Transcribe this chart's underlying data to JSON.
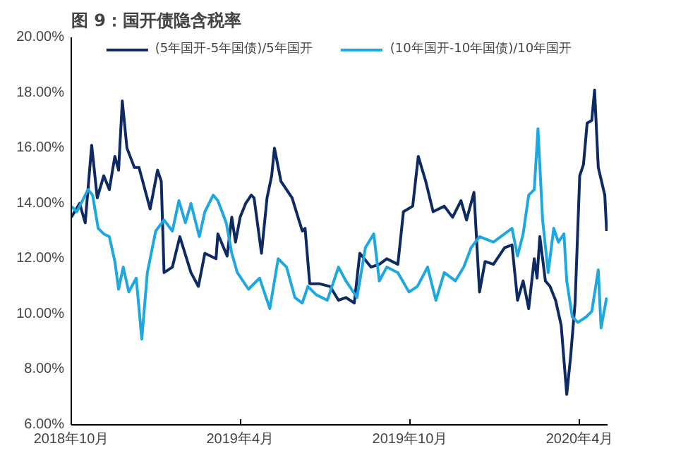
{
  "chart_data": {
    "type": "line",
    "title": "图 9：国开债隐含税率",
    "x": [
      "2018-10-01",
      "2018-10-10",
      "2018-10-16",
      "2018-10-23",
      "2018-10-29",
      "2018-11-05",
      "2018-11-11",
      "2018-11-17",
      "2018-11-21",
      "2018-11-25",
      "2018-11-30",
      "2018-12-08",
      "2018-12-13",
      "2018-12-25",
      "2019-01-02",
      "2019-01-06",
      "2019-01-09",
      "2019-01-18",
      "2019-01-26",
      "2019-02-07",
      "2019-02-15",
      "2019-02-22",
      "2019-03-06",
      "2019-03-08",
      "2019-03-18",
      "2019-03-23",
      "2019-03-27",
      "2019-04-01",
      "2019-04-07",
      "2019-04-13",
      "2019-04-16",
      "2019-04-24",
      "2019-04-30",
      "2019-05-05",
      "2019-05-08",
      "2019-05-15",
      "2019-05-27",
      "2019-06-07",
      "2019-06-10",
      "2019-06-15",
      "2019-06-25",
      "2019-07-07",
      "2019-07-16",
      "2019-07-24",
      "2019-08-02",
      "2019-08-08",
      "2019-08-20",
      "2019-08-29",
      "2019-09-06",
      "2019-09-18",
      "2019-09-24",
      "2019-10-04",
      "2019-10-10",
      "2019-10-18",
      "2019-10-26",
      "2019-11-07",
      "2019-11-16",
      "2019-11-25",
      "2019-12-01",
      "2019-12-09",
      "2019-12-15",
      "2019-12-21",
      "2019-12-30",
      "2020-01-11",
      "2020-01-19",
      "2020-01-25",
      "2020-01-31",
      "2020-02-06",
      "2020-02-12",
      "2020-02-15",
      "2020-02-18",
      "2020-02-24",
      "2020-02-29",
      "2020-03-06",
      "2020-03-12",
      "2020-03-18",
      "2020-03-22",
      "2020-03-27",
      "2020-04-01",
      "2020-04-05",
      "2020-04-09",
      "2020-04-14",
      "2020-04-17",
      "2020-04-21",
      "2020-04-28",
      "2020-04-30"
    ],
    "series": [
      {
        "name": "(5年国开-5年国债)/5年国开",
        "color": "#0d2a63",
        "values": [
          13.5,
          14.0,
          13.3,
          16.1,
          14.2,
          15.0,
          14.5,
          15.7,
          15.2,
          17.7,
          16.0,
          15.3,
          15.3,
          13.8,
          15.2,
          14.8,
          11.5,
          11.7,
          12.8,
          11.5,
          11.0,
          12.2,
          12.0,
          12.9,
          12.1,
          13.5,
          12.6,
          13.5,
          14.0,
          14.3,
          14.2,
          12.2,
          14.2,
          15.0,
          16.0,
          14.8,
          14.2,
          13.0,
          13.1,
          11.1,
          11.1,
          11.0,
          10.5,
          10.6,
          10.4,
          12.2,
          11.7,
          11.8,
          12.0,
          11.8,
          13.7,
          13.9,
          15.7,
          14.8,
          13.7,
          13.9,
          13.5,
          14.1,
          13.4,
          14.4,
          10.8,
          11.9,
          11.8,
          12.4,
          12.5,
          10.5,
          11.2,
          10.2,
          12.0,
          11.3,
          12.8,
          11.2,
          11.0,
          10.5,
          9.6,
          7.1,
          8.4,
          10.4,
          15.0,
          15.4,
          16.9,
          17.0,
          18.1,
          15.3,
          14.3,
          13.0
        ]
      },
      {
        "name": "(10年国开-10年国债)/10年国开",
        "color": "#1fa8e0",
        "x": [
          "2018-10-01",
          "2018-10-07",
          "2018-10-13",
          "2018-10-19",
          "2018-10-24",
          "2018-10-30",
          "2018-11-05",
          "2018-11-11",
          "2018-11-17",
          "2018-11-21",
          "2018-11-26",
          "2018-12-02",
          "2018-12-10",
          "2018-12-16",
          "2018-12-22",
          "2018-12-31",
          "2019-01-09",
          "2019-01-18",
          "2019-01-25",
          "2019-02-01",
          "2019-02-07",
          "2019-02-16",
          "2019-02-22",
          "2019-03-03",
          "2019-03-08",
          "2019-03-17",
          "2019-03-23",
          "2019-03-29",
          "2019-04-10",
          "2019-04-22",
          "2019-05-03",
          "2019-05-12",
          "2019-05-21",
          "2019-05-30",
          "2019-06-07",
          "2019-06-13",
          "2019-06-22",
          "2019-07-04",
          "2019-07-16",
          "2019-07-24",
          "2019-08-05",
          "2019-08-14",
          "2019-08-23",
          "2019-08-29",
          "2019-09-06",
          "2019-09-18",
          "2019-09-30",
          "2019-10-09",
          "2019-10-20",
          "2019-10-29",
          "2019-11-07",
          "2019-11-19",
          "2019-11-28",
          "2019-12-06",
          "2019-12-15",
          "2019-12-30",
          "2020-01-11",
          "2020-01-19",
          "2020-01-25",
          "2020-01-31",
          "2020-02-06",
          "2020-02-12",
          "2020-02-16",
          "2020-02-21",
          "2020-02-27",
          "2020-03-04",
          "2020-03-09",
          "2020-03-15",
          "2020-03-18",
          "2020-03-24",
          "2020-03-30",
          "2020-04-08",
          "2020-04-14",
          "2020-04-21",
          "2020-04-24",
          "2020-04-30"
        ],
        "values": [
          13.9,
          13.7,
          14.1,
          14.5,
          14.3,
          13.1,
          12.9,
          12.8,
          11.9,
          10.9,
          11.7,
          10.8,
          11.3,
          9.1,
          11.5,
          13.0,
          13.4,
          13.0,
          14.1,
          13.3,
          14.0,
          12.8,
          13.7,
          14.3,
          14.1,
          13.3,
          12.2,
          11.5,
          10.9,
          11.3,
          10.2,
          12.0,
          11.7,
          10.6,
          10.4,
          11.0,
          10.7,
          10.5,
          11.7,
          11.2,
          10.6,
          12.4,
          12.9,
          11.2,
          11.7,
          11.5,
          10.8,
          11.0,
          11.7,
          10.5,
          11.5,
          11.2,
          11.7,
          12.4,
          12.8,
          12.6,
          12.9,
          13.1,
          12.1,
          12.9,
          14.3,
          14.5,
          16.7,
          13.4,
          11.5,
          13.1,
          12.6,
          12.9,
          11.2,
          9.9,
          9.7,
          9.9,
          10.1,
          11.6,
          9.5,
          10.6
        ]
      }
    ],
    "xlim": [
      "2018-10-01",
      "2020-05-01"
    ],
    "xticks": [
      {
        "value": "2018-10-01",
        "label": "2018年10月"
      },
      {
        "value": "2019-04-01",
        "label": "2019年4月"
      },
      {
        "value": "2019-10-01",
        "label": "2019年10月"
      },
      {
        "value": "2020-04-01",
        "label": "2020年4月"
      }
    ],
    "ylim": [
      6,
      20
    ],
    "yticks": [
      {
        "value": 6,
        "label": "6.00%"
      },
      {
        "value": 8,
        "label": "8.00%"
      },
      {
        "value": 10,
        "label": "10.00%"
      },
      {
        "value": 12,
        "label": "12.00%"
      },
      {
        "value": 14,
        "label": "14.00%"
      },
      {
        "value": 16,
        "label": "16.00%"
      },
      {
        "value": 18,
        "label": "18.00%"
      },
      {
        "value": 20,
        "label": "20.00%"
      }
    ],
    "grid": false,
    "legend": "top",
    "line_style": "solid",
    "marker": "none"
  }
}
